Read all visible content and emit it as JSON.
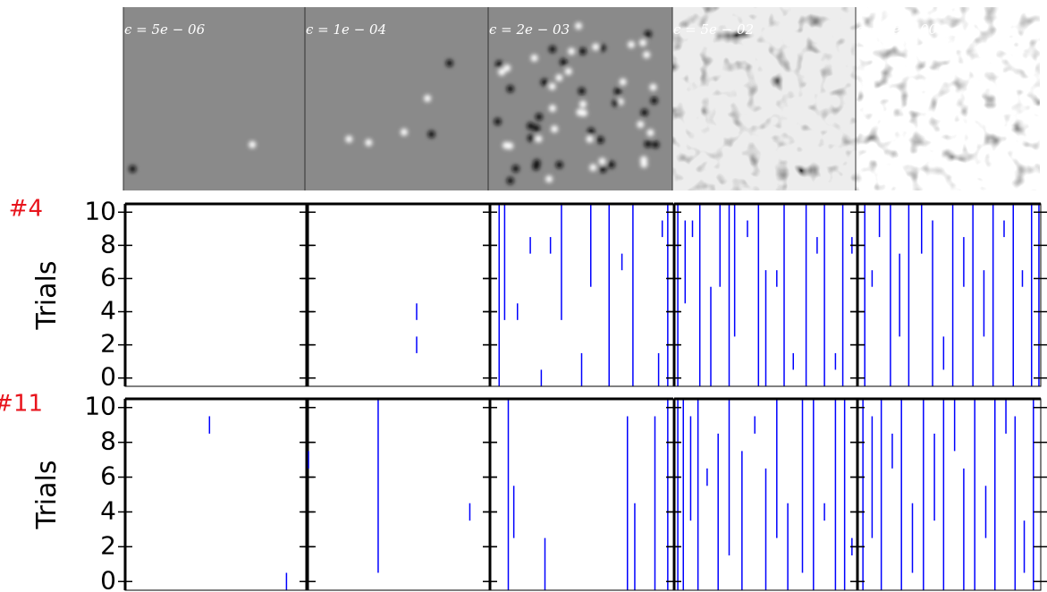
{
  "images": [
    {
      "label": "ϵ = 5e − 06"
    },
    {
      "label": "ϵ = 1e − 04"
    },
    {
      "label": "ϵ = 2e − 03"
    },
    {
      "label": "ϵ = 5e − 02"
    },
    {
      "label": "ϵ = 1e + 00"
    }
  ],
  "chart_data": [
    {
      "type": "raster",
      "row_label": "#4",
      "ylabel": "Trials",
      "ylim": [
        -0.5,
        10.5
      ],
      "yticks": [
        0,
        2,
        4,
        6,
        8,
        10
      ],
      "xlim": [
        0,
        1
      ],
      "color": "#0000ff",
      "panels": [
        {
          "spikes": []
        },
        {
          "spikes": [
            [
              0.6,
              3.5,
              4.5
            ],
            [
              0.6,
              1.5,
              2.5
            ]
          ]
        },
        {
          "spikes": [
            [
              0.05,
              -0.5,
              10.5
            ],
            [
              0.08,
              3.5,
              10.5
            ],
            [
              0.15,
              3.5,
              4.5
            ],
            [
              0.22,
              7.5,
              8.5
            ],
            [
              0.28,
              -0.5,
              0.5
            ],
            [
              0.33,
              7.5,
              8.5
            ],
            [
              0.39,
              3.5,
              10.5
            ],
            [
              0.5,
              -0.5,
              1.5
            ],
            [
              0.55,
              5.5,
              10.5
            ],
            [
              0.65,
              -0.5,
              10.5
            ],
            [
              0.72,
              6.5,
              7.5
            ],
            [
              0.78,
              -0.5,
              10.5
            ],
            [
              0.92,
              -0.5,
              1.5
            ],
            [
              0.94,
              8.5,
              9.5
            ],
            [
              0.97,
              -0.5,
              10.5
            ]
          ]
        },
        {
          "spikes": [
            [
              0.02,
              -0.5,
              10.5
            ],
            [
              0.06,
              4.5,
              9.5
            ],
            [
              0.1,
              8.5,
              9.5
            ],
            [
              0.14,
              -0.5,
              10.5
            ],
            [
              0.2,
              -0.5,
              5.5
            ],
            [
              0.25,
              5.5,
              10.5
            ],
            [
              0.3,
              -0.5,
              10.5
            ],
            [
              0.33,
              2.5,
              10.5
            ],
            [
              0.4,
              8.5,
              9.5
            ],
            [
              0.46,
              -0.5,
              10.5
            ],
            [
              0.5,
              -0.5,
              6.5
            ],
            [
              0.56,
              5.5,
              6.5
            ],
            [
              0.6,
              -0.5,
              10.5
            ],
            [
              0.65,
              0.5,
              1.5
            ],
            [
              0.72,
              -0.5,
              10.5
            ],
            [
              0.78,
              7.5,
              8.5
            ],
            [
              0.82,
              -0.5,
              10.5
            ],
            [
              0.88,
              0.5,
              1.5
            ],
            [
              0.92,
              -0.5,
              10.5
            ],
            [
              0.97,
              7.5,
              8.5
            ]
          ]
        },
        {
          "spikes": [
            [
              0.04,
              -0.5,
              10.5
            ],
            [
              0.08,
              5.5,
              6.5
            ],
            [
              0.12,
              8.5,
              10.5
            ],
            [
              0.18,
              -0.5,
              10.5
            ],
            [
              0.23,
              2.5,
              7.5
            ],
            [
              0.28,
              -0.5,
              10.5
            ],
            [
              0.35,
              7.5,
              10.5
            ],
            [
              0.41,
              -0.5,
              9.5
            ],
            [
              0.47,
              0.5,
              2.5
            ],
            [
              0.52,
              -0.5,
              10.5
            ],
            [
              0.58,
              5.5,
              8.5
            ],
            [
              0.63,
              -0.5,
              10.5
            ],
            [
              0.69,
              2.5,
              6.5
            ],
            [
              0.74,
              -0.5,
              10.5
            ],
            [
              0.8,
              8.5,
              9.5
            ],
            [
              0.85,
              -0.5,
              10.5
            ],
            [
              0.9,
              5.5,
              6.5
            ],
            [
              0.95,
              -0.5,
              10.5
            ],
            [
              0.99,
              -0.5,
              10.5
            ]
          ]
        }
      ]
    },
    {
      "type": "raster",
      "row_label": "#11",
      "ylabel": "Trials",
      "ylim": [
        -0.5,
        10.5
      ],
      "yticks": [
        0,
        2,
        4,
        6,
        8,
        10
      ],
      "xlim": [
        0,
        1
      ],
      "color": "#0000ff",
      "panels": [
        {
          "spikes": [
            [
              0.46,
              8.5,
              9.5
            ],
            [
              0.88,
              -0.5,
              0.5
            ]
          ]
        },
        {
          "spikes": [
            [
              0.01,
              6.5,
              7.5
            ],
            [
              0.39,
              0.5,
              10.5
            ],
            [
              0.89,
              3.5,
              4.5
            ]
          ]
        },
        {
          "spikes": [
            [
              0.1,
              -0.5,
              10.5
            ],
            [
              0.13,
              2.5,
              5.5
            ],
            [
              0.3,
              -0.5,
              2.5
            ],
            [
              0.75,
              -0.5,
              9.5
            ],
            [
              0.79,
              -0.5,
              4.5
            ],
            [
              0.9,
              -0.5,
              9.5
            ],
            [
              0.97,
              -0.5,
              10.5
            ]
          ]
        },
        {
          "spikes": [
            [
              0.02,
              -0.5,
              10.5
            ],
            [
              0.05,
              -0.5,
              10.5
            ],
            [
              0.09,
              3.5,
              9.5
            ],
            [
              0.13,
              -0.5,
              10.5
            ],
            [
              0.18,
              5.5,
              6.5
            ],
            [
              0.24,
              -0.5,
              8.5
            ],
            [
              0.3,
              1.5,
              10.5
            ],
            [
              0.37,
              -0.5,
              7.5
            ],
            [
              0.44,
              8.5,
              9.5
            ],
            [
              0.5,
              -0.5,
              6.5
            ],
            [
              0.56,
              2.5,
              10.5
            ],
            [
              0.62,
              -0.5,
              4.5
            ],
            [
              0.7,
              0.5,
              10.5
            ],
            [
              0.76,
              -0.5,
              10.5
            ],
            [
              0.82,
              3.5,
              4.5
            ],
            [
              0.88,
              -0.5,
              10.5
            ],
            [
              0.93,
              -0.5,
              10.5
            ],
            [
              0.97,
              1.5,
              2.5
            ]
          ]
        },
        {
          "spikes": [
            [
              0.03,
              -0.5,
              10.5
            ],
            [
              0.08,
              2.5,
              9.5
            ],
            [
              0.13,
              -0.5,
              10.5
            ],
            [
              0.19,
              6.5,
              8.5
            ],
            [
              0.24,
              -0.5,
              10.5
            ],
            [
              0.3,
              0.5,
              4.5
            ],
            [
              0.36,
              -0.5,
              10.5
            ],
            [
              0.42,
              3.5,
              8.5
            ],
            [
              0.47,
              -0.5,
              10.5
            ],
            [
              0.53,
              7.5,
              10.5
            ],
            [
              0.58,
              -0.5,
              6.5
            ],
            [
              0.64,
              -0.5,
              10.5
            ],
            [
              0.7,
              2.5,
              5.5
            ],
            [
              0.75,
              -0.5,
              10.5
            ],
            [
              0.81,
              8.5,
              10.5
            ],
            [
              0.86,
              -0.5,
              9.5
            ],
            [
              0.91,
              0.5,
              3.5
            ],
            [
              0.96,
              -0.5,
              10.5
            ]
          ]
        }
      ]
    }
  ]
}
